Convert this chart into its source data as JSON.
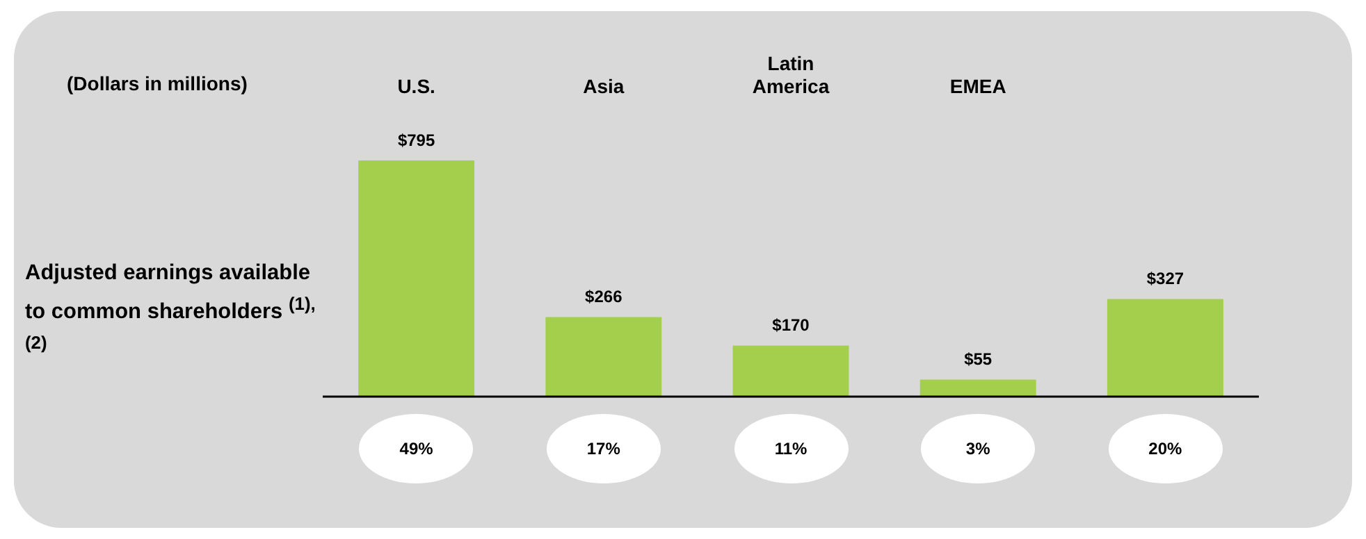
{
  "chart_data": {
    "type": "bar",
    "title": "(Dollars in millions)",
    "ylabel": "Adjusted earnings available to common shareholders $^{(1),(2)}$",
    "categories": [
      "U.S.",
      "Asia",
      "Latin America",
      "EMEA",
      null
    ],
    "values": [
      795,
      266,
      170,
      55,
      327
    ],
    "value_labels": [
      "$795",
      "$266",
      "$170",
      "$55",
      "$327"
    ],
    "color": "#a4cf4c",
    "annotations": [
      "49%",
      "17%",
      "11%",
      "3%",
      "20%"
    ],
    "grid": false,
    "legend": false
  }
}
